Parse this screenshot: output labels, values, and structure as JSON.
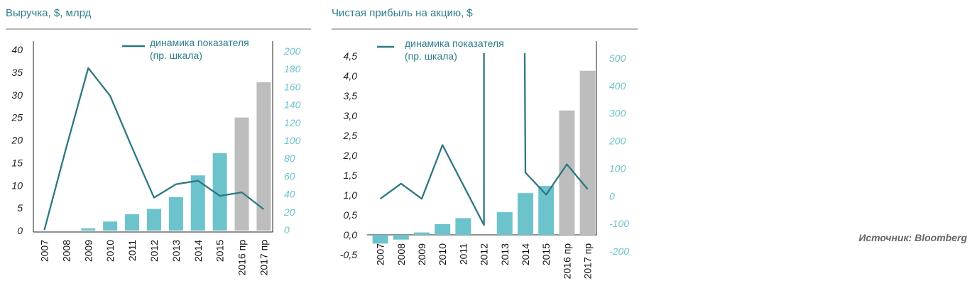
{
  "colors": {
    "bar_actual": "#6cc3cc",
    "bar_forecast": "#bdbdbd",
    "line": "#2e7780",
    "title": "#2e7d8c",
    "rule": "#9e9e9e"
  },
  "source": "Источник: Bloomberg",
  "chart_data": [
    {
      "type": "bar",
      "title": "Выручка, $, млрд",
      "categories": [
        "2007",
        "2008",
        "2009",
        "2010",
        "2011",
        "2012",
        "2013",
        "2014",
        "2015",
        "2016 пр",
        "2017 пр"
      ],
      "forecast_from_index": 9,
      "series": [
        {
          "name": "Выручка",
          "axis": "left",
          "values": [
            0,
            0,
            0.5,
            2.0,
            3.6,
            4.8,
            7.4,
            12.2,
            17.1,
            25.0,
            32.8
          ]
        },
        {
          "name": "динамика показателя (пр. шкала)",
          "type": "line",
          "axis": "right",
          "values": [
            0,
            92,
            181,
            150,
            92,
            36,
            51,
            55,
            38,
            42,
            23
          ]
        }
      ],
      "left_axis": {
        "ylim": [
          0,
          40
        ],
        "ticks": [
          "0",
          "5",
          "10",
          "15",
          "20",
          "25",
          "30",
          "35",
          "40"
        ],
        "values": [
          0,
          5,
          10,
          15,
          20,
          25,
          30,
          35,
          40
        ]
      },
      "right_axis": {
        "ylim": [
          0,
          200
        ],
        "ticks": [
          "0",
          "20",
          "40",
          "60",
          "80",
          "100",
          "120",
          "140",
          "160",
          "180",
          "200"
        ],
        "values": [
          0,
          20,
          40,
          60,
          80,
          100,
          120,
          140,
          160,
          180,
          200
        ]
      },
      "legend": {
        "label_line1": "динамика показателя",
        "label_line2": "(пр. шкала)",
        "position": "top-right"
      }
    },
    {
      "type": "bar",
      "title": "Чистая прибыль на акцию, $",
      "categories": [
        "2007",
        "2008",
        "2009",
        "2010",
        "2011",
        "2012",
        "2013",
        "2014",
        "2015",
        "2016 пр",
        "2017 пр"
      ],
      "forecast_from_index": 9,
      "series": [
        {
          "name": "Чистая прибыль на акцию",
          "axis": "left",
          "values": [
            -0.22,
            -0.12,
            0.06,
            0.27,
            0.42,
            0,
            0.57,
            1.05,
            1.23,
            3.13,
            4.13
          ]
        },
        {
          "name": "динамика показателя (пр. шкала)",
          "type": "line",
          "axis": "right",
          "values": [
            -10,
            45,
            -10,
            185,
            40,
            -105,
            null,
            85,
            5,
            115,
            25
          ],
          "spikes": [
            {
              "index": 5,
              "to": 520
            },
            {
              "index": 7,
              "from": 520
            }
          ]
        }
      ],
      "left_axis": {
        "ylim": [
          -0.5,
          4.5
        ],
        "ticks": [
          "-0,5",
          "0,0",
          "0,5",
          "1,0",
          "1,5",
          "2,0",
          "2,5",
          "3,0",
          "3,5",
          "4,0",
          "4,5"
        ],
        "values": [
          -0.5,
          0,
          0.5,
          1,
          1.5,
          2,
          2.5,
          3,
          3.5,
          4,
          4.5
        ]
      },
      "right_axis": {
        "ylim": [
          -200,
          500
        ],
        "ticks": [
          "-200",
          "-100",
          "0",
          "100",
          "200",
          "300",
          "400",
          "500"
        ],
        "values": [
          -200,
          -100,
          0,
          100,
          200,
          300,
          400,
          500
        ]
      },
      "legend": {
        "label_line1": "динамика показателя",
        "label_line2": "(пр. шкала)",
        "position": "top-left"
      }
    }
  ]
}
